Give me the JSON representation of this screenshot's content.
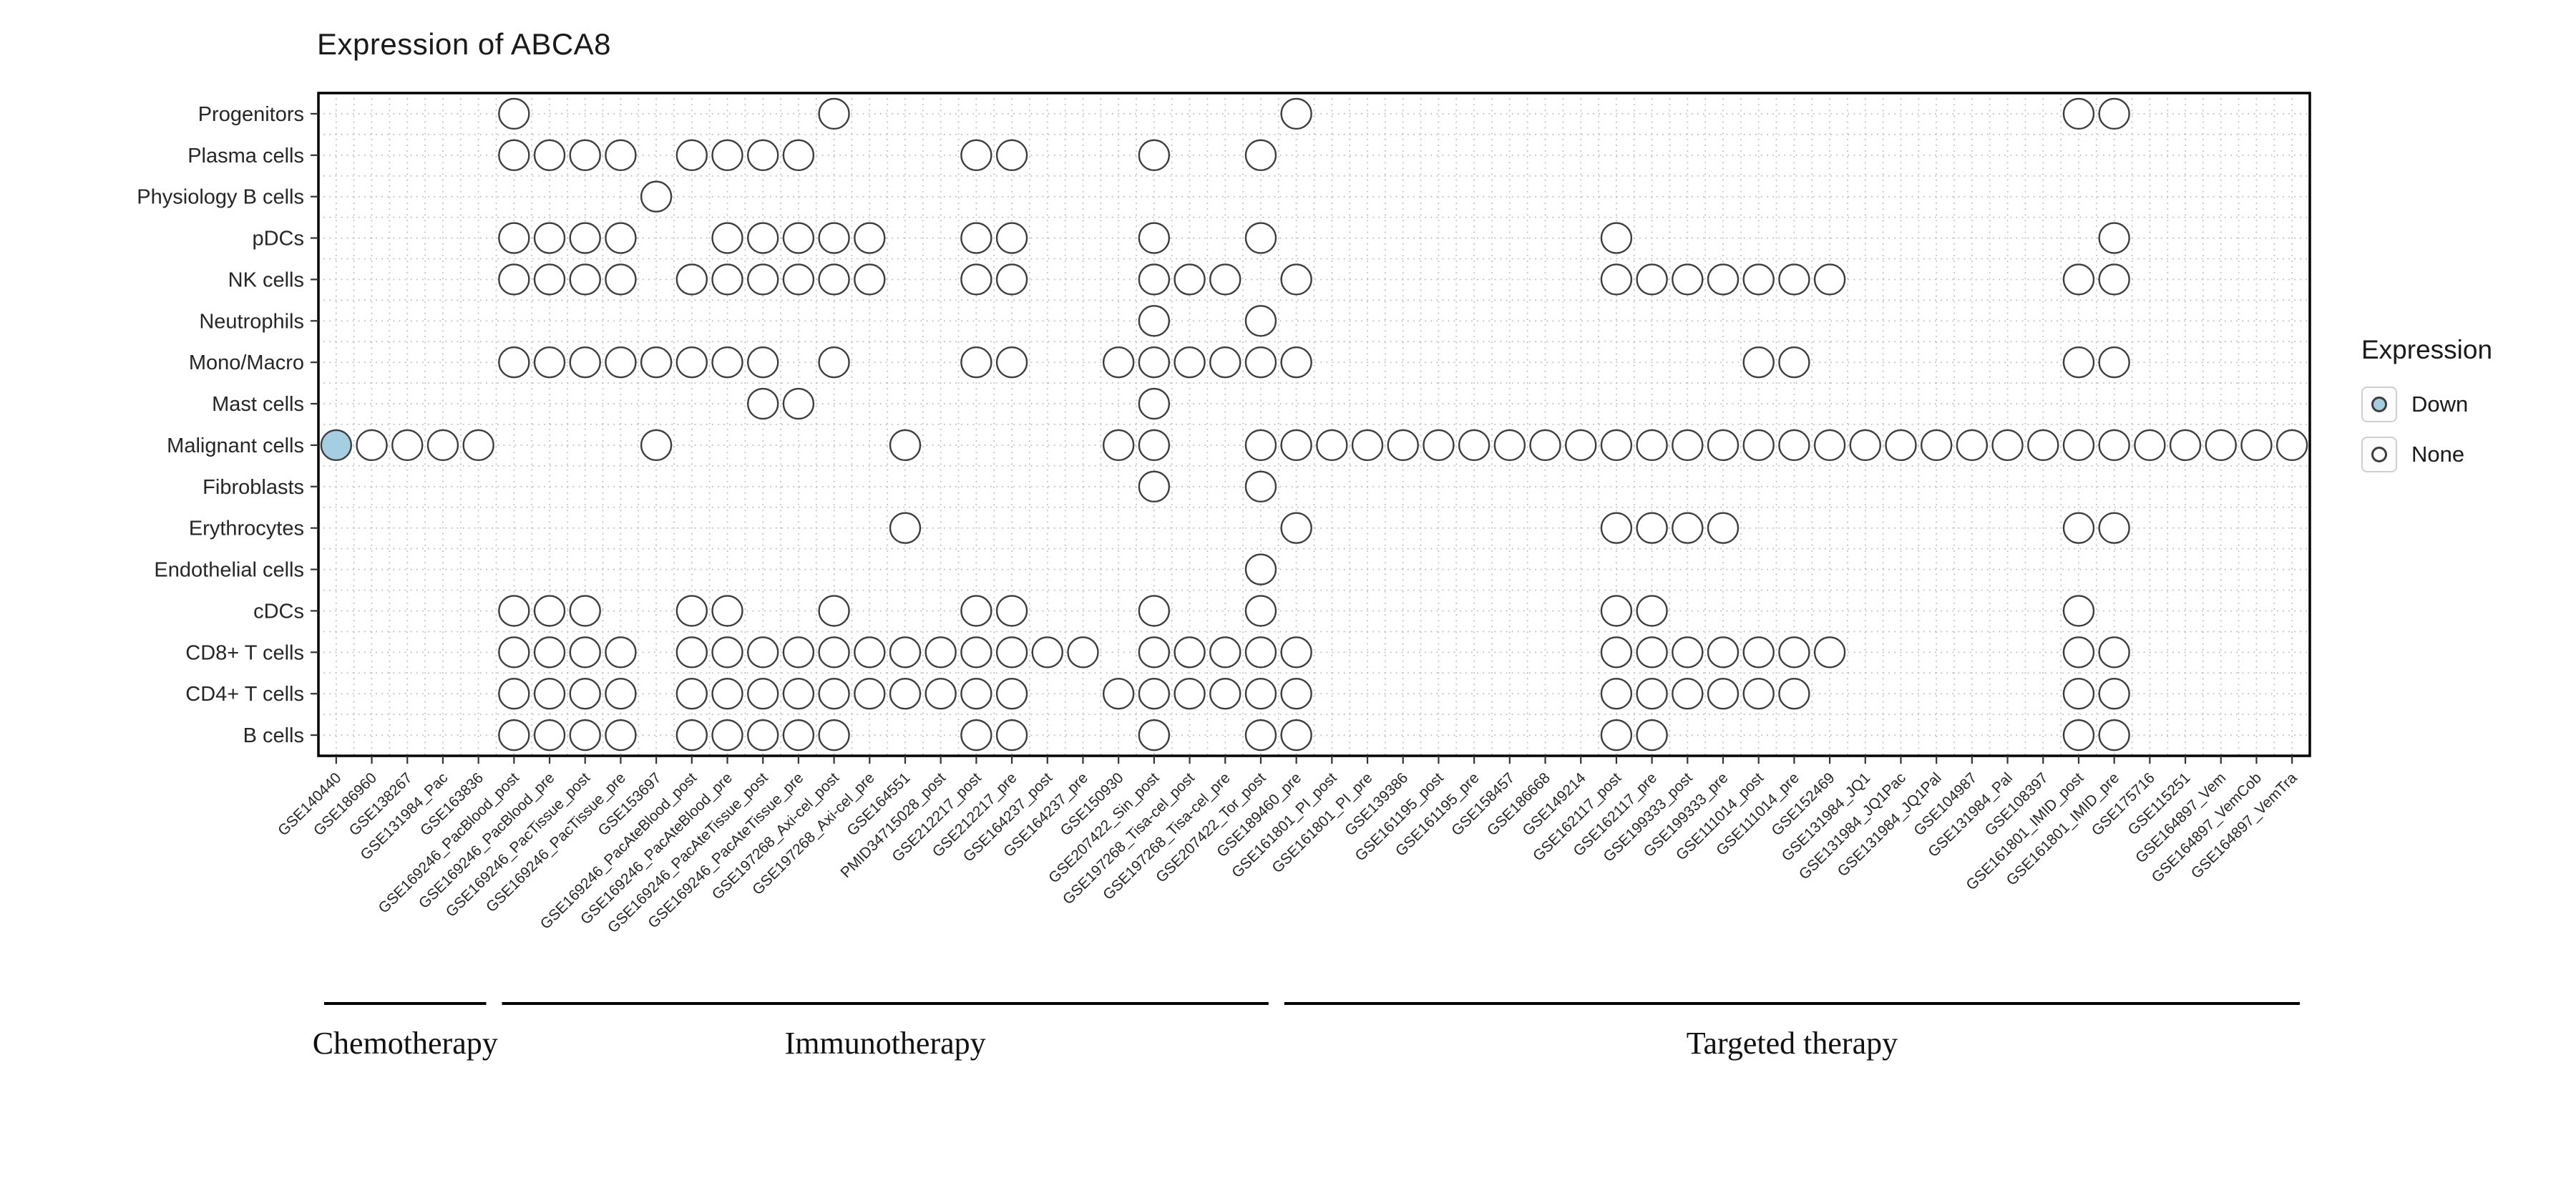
{
  "chart_data": {
    "type": "scatter",
    "title": "Expression of ABCA8",
    "xlabel": "",
    "ylabel": "",
    "grid": "dotted",
    "legend": {
      "title": "Expression",
      "position": "right",
      "items": [
        {
          "label": "Down",
          "color": "#a6cee3"
        },
        {
          "label": "None",
          "color": "#ffffff"
        }
      ]
    },
    "rows": [
      "Progenitors",
      "Plasma cells",
      "Physiology B cells",
      "pDCs",
      "NK cells",
      "Neutrophils",
      "Mono/Macro",
      "Mast cells",
      "Malignant cells",
      "Fibroblasts",
      "Erythrocytes",
      "Endothelial cells",
      "cDCs",
      "CD8+ T cells",
      "CD4+ T cells",
      "B cells"
    ],
    "columns": [
      "GSE140440",
      "GSE186960",
      "GSE138267",
      "GSE131984_Pac",
      "GSE163836",
      "GSE169246_PacBlood_post",
      "GSE169246_PacBlood_pre",
      "GSE169246_PacTissue_post",
      "GSE169246_PacTissue_pre",
      "GSE153697",
      "GSE169246_PacAteBlood_post",
      "GSE169246_PacAteBlood_pre",
      "GSE169246_PacAteTissue_post",
      "GSE169246_PacAteTissue_pre",
      "GSE197268_Axi-cel_post",
      "GSE197268_Axi-cel_pre",
      "GSE164551",
      "PMID34715028_post",
      "GSE212217_post",
      "GSE212217_pre",
      "GSE164237_post",
      "GSE164237_pre",
      "GSE150930",
      "GSE207422_Sin_post",
      "GSE197268_Tisa-cel_post",
      "GSE197268_Tisa-cel_pre",
      "GSE207422_Tor_post",
      "GSE189460_pre",
      "GSE161801_PI_post",
      "GSE161801_PI_pre",
      "GSE139386",
      "GSE161195_post",
      "GSE161195_pre",
      "GSE158457",
      "GSE186668",
      "GSE149214",
      "GSE162117_post",
      "GSE162117_pre",
      "GSE199333_post",
      "GSE199333_pre",
      "GSE111014_post",
      "GSE111014_pre",
      "GSE152469",
      "GSE131984_JQ1",
      "GSE131984_JQ1Pac",
      "GSE131984_JQ1Pal",
      "GSE104987",
      "GSE131984_Pal",
      "GSE108397",
      "GSE161801_IMID_post",
      "GSE161801_IMID_pre",
      "GSE175716",
      "GSE115251",
      "GSE164897_Vem",
      "GSE164897_VemCob",
      "GSE164897_VemTra"
    ],
    "groups": [
      {
        "label": "Chemotherapy",
        "start": 0,
        "end": 4
      },
      {
        "label": "Immunotherapy",
        "start": 5,
        "end": 26
      },
      {
        "label": "Targeted therapy",
        "start": 27,
        "end": 55
      }
    ],
    "points_none": [
      {
        "row": "Progenitors",
        "cols": [
          5,
          14,
          27,
          49,
          50
        ]
      },
      {
        "row": "Plasma cells",
        "cols": [
          5,
          6,
          7,
          8,
          10,
          11,
          12,
          13,
          18,
          19,
          23,
          26
        ]
      },
      {
        "row": "Physiology B cells",
        "cols": [
          9
        ]
      },
      {
        "row": "pDCs",
        "cols": [
          5,
          6,
          7,
          8,
          11,
          12,
          13,
          14,
          15,
          18,
          19,
          23,
          26,
          36,
          50
        ]
      },
      {
        "row": "NK cells",
        "cols": [
          5,
          6,
          7,
          8,
          10,
          11,
          12,
          13,
          14,
          15,
          18,
          19,
          23,
          24,
          25,
          27,
          36,
          37,
          38,
          39,
          40,
          41,
          42,
          49,
          50
        ]
      },
      {
        "row": "Neutrophils",
        "cols": [
          23,
          26
        ]
      },
      {
        "row": "Mono/Macro",
        "cols": [
          5,
          6,
          7,
          8,
          9,
          10,
          11,
          12,
          14,
          18,
          19,
          22,
          23,
          24,
          25,
          26,
          27,
          40,
          41,
          49,
          50
        ]
      },
      {
        "row": "Mast cells",
        "cols": [
          12,
          13,
          23
        ]
      },
      {
        "row": "Malignant cells",
        "cols": [
          1,
          2,
          3,
          4,
          9,
          16,
          22,
          23,
          26,
          27,
          28,
          29,
          30,
          31,
          32,
          33,
          34,
          35,
          36,
          37,
          38,
          39,
          40,
          41,
          42,
          43,
          44,
          45,
          46,
          47,
          48,
          49,
          50,
          51,
          52,
          53,
          54,
          55
        ]
      },
      {
        "row": "Fibroblasts",
        "cols": [
          23,
          26
        ]
      },
      {
        "row": "Erythrocytes",
        "cols": [
          16,
          27,
          36,
          37,
          38,
          39,
          49,
          50
        ]
      },
      {
        "row": "Endothelial cells",
        "cols": [
          26
        ]
      },
      {
        "row": "cDCs",
        "cols": [
          5,
          6,
          7,
          10,
          11,
          14,
          18,
          19,
          23,
          26,
          36,
          37,
          49
        ]
      },
      {
        "row": "CD8+ T cells",
        "cols": [
          5,
          6,
          7,
          8,
          10,
          11,
          12,
          13,
          14,
          15,
          16,
          17,
          18,
          19,
          20,
          21,
          23,
          24,
          25,
          26,
          27,
          36,
          37,
          38,
          39,
          40,
          41,
          42,
          49,
          50
        ]
      },
      {
        "row": "CD4+ T cells",
        "cols": [
          5,
          6,
          7,
          8,
          10,
          11,
          12,
          13,
          14,
          15,
          16,
          17,
          18,
          19,
          22,
          23,
          24,
          25,
          26,
          27,
          36,
          37,
          38,
          39,
          40,
          41,
          49,
          50
        ]
      },
      {
        "row": "B cells",
        "cols": [
          5,
          6,
          7,
          8,
          10,
          11,
          12,
          13,
          14,
          18,
          19,
          23,
          26,
          27,
          36,
          37,
          49,
          50
        ]
      }
    ],
    "points_down": [
      {
        "row": "Malignant cells",
        "col": 0
      }
    ]
  }
}
